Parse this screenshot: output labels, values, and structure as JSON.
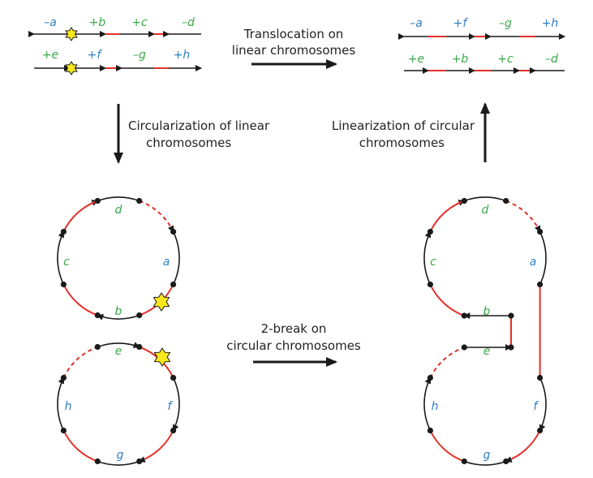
{
  "colors": {
    "blue": "#2f7fc1",
    "green": "#3aa84a",
    "red": "#e4302a",
    "black": "#1a1a1a",
    "star": "#f7e71c"
  },
  "captions": {
    "translocation": [
      "Translocation on",
      "linear chromosomes"
    ],
    "circularization": [
      "Circularization of linear",
      "chromosomes"
    ],
    "linearization": [
      "Linearization of circular",
      "chromosomes"
    ],
    "two_break": [
      "2-break on",
      "circular chromosomes"
    ]
  },
  "linear_before": {
    "chromosome1": [
      "–a",
      "+b",
      "+c",
      "–d"
    ],
    "chromosome2": [
      "+e",
      "+f",
      "–g",
      "+h"
    ]
  },
  "linear_after": {
    "chromosome1": [
      "–a",
      "+f",
      "–g",
      "+h"
    ],
    "chromosome2": [
      "+e",
      "+b",
      "+c",
      "–d"
    ]
  },
  "circular_before": {
    "top_circle": [
      "d",
      "a",
      "b",
      "c"
    ],
    "bottom_circle": [
      "e",
      "f",
      "g",
      "h"
    ]
  },
  "circular_after": {
    "labels": [
      "d",
      "a",
      "b",
      "c",
      "e",
      "f",
      "g",
      "h"
    ]
  },
  "icons": {
    "break": "star-icon",
    "arrow": "arrow-icon"
  }
}
